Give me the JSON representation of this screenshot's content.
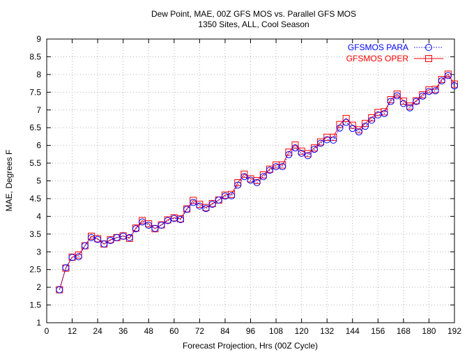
{
  "chart_data": {
    "type": "line",
    "title": "Dew Point, MAE, 00Z GFS MOS vs. Parallel GFS MOS",
    "subtitle": "1350 Sites, ALL, Cool Season",
    "xlabel": "Forecast Projection, Hrs (00Z Cycle)",
    "ylabel": "MAE, Degrees F",
    "xlim": [
      0,
      192
    ],
    "ylim": [
      1,
      9
    ],
    "xticks": [
      "0",
      "12",
      "24",
      "36",
      "48",
      "60",
      "72",
      "84",
      "96",
      "108",
      "120",
      "132",
      "144",
      "156",
      "168",
      "180",
      "192"
    ],
    "yticks": [
      "1",
      "1.5",
      "2",
      "2.5",
      "3",
      "3.5",
      "4",
      "4.5",
      "5",
      "5.5",
      "6",
      "6.5",
      "7",
      "7.5",
      "8",
      "8.5",
      "9"
    ],
    "grid": true,
    "legend_position": "top-right",
    "x": [
      6,
      9,
      12,
      15,
      18,
      21,
      24,
      27,
      30,
      33,
      36,
      39,
      42,
      45,
      48,
      51,
      54,
      57,
      60,
      63,
      66,
      69,
      72,
      75,
      78,
      81,
      84,
      87,
      90,
      93,
      96,
      99,
      102,
      105,
      108,
      111,
      114,
      117,
      120,
      123,
      126,
      129,
      132,
      135,
      138,
      141,
      144,
      147,
      150,
      153,
      156,
      159,
      162,
      165,
      168,
      171,
      174,
      177,
      180,
      183,
      186,
      189,
      192
    ],
    "series": [
      {
        "name": "GFSMOS PARA",
        "color": "#0000ff",
        "marker": "circle",
        "line_style": "dotted",
        "values": [
          1.93,
          2.55,
          2.84,
          2.86,
          3.17,
          3.4,
          3.35,
          3.22,
          3.32,
          3.4,
          3.44,
          3.4,
          3.65,
          3.84,
          3.75,
          3.66,
          3.75,
          3.88,
          3.94,
          3.91,
          4.2,
          4.39,
          4.29,
          4.22,
          4.34,
          4.46,
          4.57,
          4.58,
          4.88,
          5.12,
          5.02,
          4.95,
          5.12,
          5.3,
          5.4,
          5.4,
          5.74,
          5.93,
          5.78,
          5.71,
          5.89,
          6.06,
          6.16,
          6.15,
          6.49,
          6.65,
          6.48,
          6.38,
          6.54,
          6.71,
          6.86,
          6.9,
          7.24,
          7.4,
          7.18,
          7.06,
          7.24,
          7.39,
          7.52,
          7.54,
          7.82,
          7.97,
          7.68
        ]
      },
      {
        "name": "GFSMOS OPER",
        "color": "#ff0000",
        "marker": "square",
        "line_style": "solid",
        "values": [
          1.93,
          2.54,
          2.85,
          2.91,
          3.17,
          3.44,
          3.37,
          3.22,
          3.34,
          3.4,
          3.45,
          3.38,
          3.67,
          3.88,
          3.79,
          3.65,
          3.76,
          3.9,
          3.96,
          3.93,
          4.21,
          4.45,
          4.34,
          4.25,
          4.36,
          4.46,
          4.6,
          4.62,
          4.95,
          5.19,
          5.06,
          5.01,
          5.17,
          5.33,
          5.45,
          5.45,
          5.81,
          6.01,
          5.84,
          5.77,
          5.93,
          6.1,
          6.23,
          6.23,
          6.59,
          6.76,
          6.57,
          6.44,
          6.62,
          6.78,
          6.93,
          6.95,
          7.29,
          7.45,
          7.25,
          7.11,
          7.26,
          7.43,
          7.57,
          7.58,
          7.86,
          8.01,
          7.73
        ]
      }
    ]
  }
}
